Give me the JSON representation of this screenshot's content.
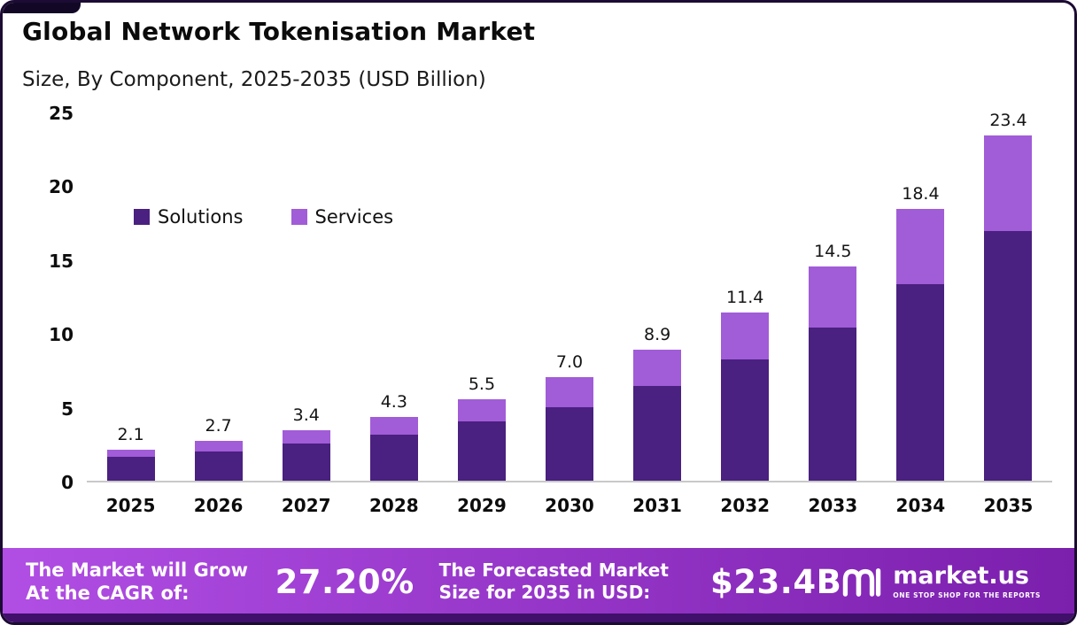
{
  "colors": {
    "solutions": "#4A2080",
    "services": "#A15CD8",
    "banner_gradient": [
      "#B14EE4",
      "#7B1FAD"
    ],
    "bottom_strip": "#40106B",
    "frame_border": "#1C0B33",
    "baseline": "#C9C9C9"
  },
  "chart_data": {
    "type": "bar",
    "stacked": true,
    "title": "Global Network Tokenisation Market",
    "subtitle": "Size, By Component, 2025-2035 (USD Billion)",
    "categories": [
      "2025",
      "2026",
      "2027",
      "2028",
      "2029",
      "2030",
      "2031",
      "2032",
      "2033",
      "2034",
      "2035"
    ],
    "series": [
      {
        "name": "Solutions",
        "color": "#4A2080",
        "values": [
          1.6,
          2.0,
          2.5,
          3.1,
          4.0,
          5.0,
          6.4,
          8.2,
          10.4,
          13.3,
          16.9
        ]
      },
      {
        "name": "Services",
        "color": "#A15CD8",
        "values": [
          0.5,
          0.7,
          0.9,
          1.2,
          1.5,
          2.0,
          2.5,
          3.2,
          4.1,
          5.1,
          6.5
        ]
      }
    ],
    "totals": [
      2.1,
      2.7,
      3.4,
      4.3,
      5.5,
      7.0,
      8.9,
      11.4,
      14.5,
      18.4,
      23.4
    ],
    "total_labels": [
      "2.1",
      "2.7",
      "3.4",
      "4.3",
      "5.5",
      "7.0",
      "8.9",
      "11.4",
      "14.5",
      "18.4",
      "23.4"
    ],
    "ylim": [
      0,
      25
    ],
    "yticks": [
      0,
      5,
      10,
      15,
      20,
      25
    ],
    "grid": false,
    "legend_position": "inside-upper-left"
  },
  "footer": {
    "cagr_label": "The Market will Grow At the CAGR of:",
    "cagr_value": "27.20%",
    "forecast_label": "The Forecasted Market Size for 2035 in USD:",
    "forecast_value": "$23.4B",
    "brand": "market.us",
    "brand_tagline": "ONE STOP SHOP FOR THE REPORTS"
  }
}
